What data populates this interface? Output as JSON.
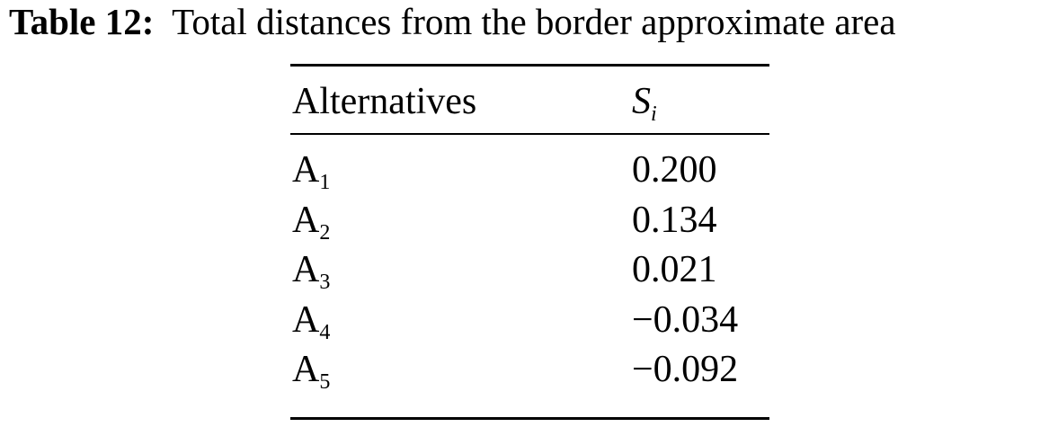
{
  "caption": {
    "label": "Table 12:",
    "text": "Total distances from the border approximate area"
  },
  "table": {
    "header": [
      "Alternatives",
      {
        "base": "S",
        "sub": "i"
      }
    ],
    "rows": [
      [
        {
          "base": "A",
          "sub": "1"
        },
        "0.200"
      ],
      [
        {
          "base": "A",
          "sub": "2"
        },
        "0.134"
      ],
      [
        {
          "base": "A",
          "sub": "3"
        },
        "0.021"
      ],
      [
        {
          "base": "A",
          "sub": "4"
        },
        "−0.034"
      ],
      [
        {
          "base": "A",
          "sub": "5"
        },
        "−0.092"
      ]
    ]
  }
}
